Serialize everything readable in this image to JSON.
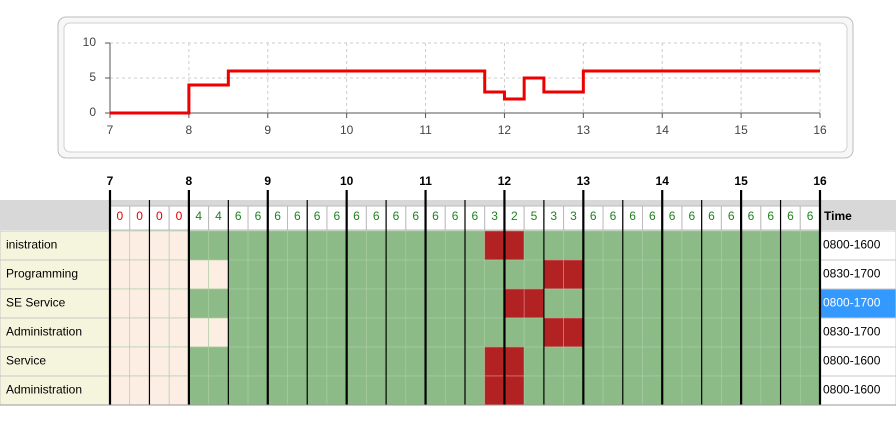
{
  "chart_data": {
    "type": "line",
    "x": [
      7,
      8,
      8,
      8.5,
      8.5,
      11.75,
      11.75,
      12,
      12,
      12.25,
      12.25,
      12.5,
      12.5,
      13,
      13,
      16
    ],
    "values": [
      0,
      0,
      4,
      4,
      6,
      6,
      3,
      3,
      2,
      2,
      5,
      5,
      3,
      3,
      6,
      6
    ],
    "color": "#ee0000",
    "xlim": [
      7,
      16
    ],
    "xticks": [
      7,
      8,
      9,
      10,
      11,
      12,
      13,
      14,
      15,
      16
    ],
    "ylim": [
      0,
      10
    ],
    "yticks": [
      0,
      5,
      10
    ],
    "grid": true
  },
  "schedule": {
    "hours": [
      7,
      8,
      9,
      10,
      11,
      12,
      13,
      14,
      15,
      16
    ],
    "counts": [
      0,
      0,
      0,
      0,
      4,
      4,
      6,
      6,
      6,
      6,
      6,
      6,
      6,
      6,
      6,
      6,
      6,
      6,
      6,
      3,
      2,
      5,
      3,
      3,
      6,
      6,
      6,
      6,
      6,
      6,
      6,
      6,
      6,
      6,
      6,
      6
    ],
    "time_header": "Time",
    "rows": [
      {
        "name": "inistration",
        "time": "0800-1600"
      },
      {
        "name": "Programming",
        "time": "0830-1700"
      },
      {
        "name": "SE Service",
        "time": "0800-1700"
      },
      {
        "name": "Administration",
        "time": "0830-1700"
      },
      {
        "name": "Service",
        "time": "0800-1600"
      },
      {
        "name": "Administration",
        "time": "0800-1600"
      }
    ]
  }
}
